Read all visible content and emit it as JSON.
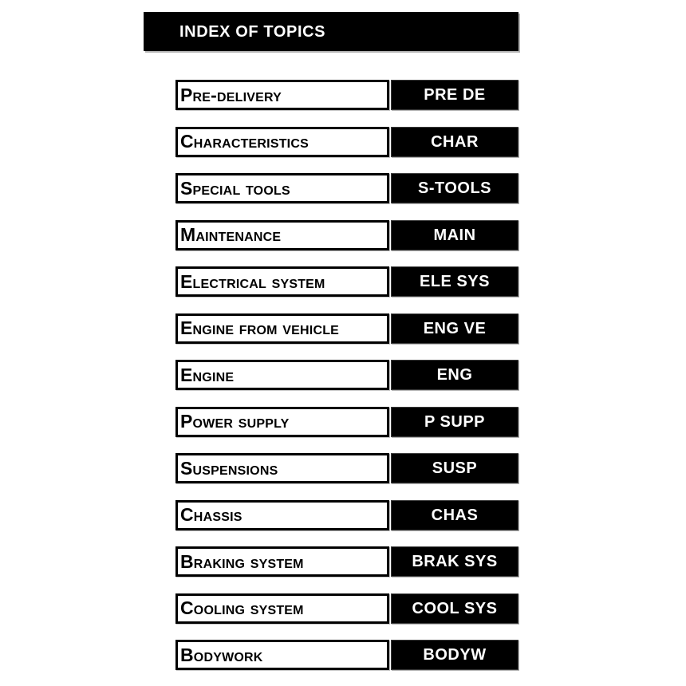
{
  "header": {
    "title": "INDEX OF TOPICS",
    "bg_color": "#000000",
    "text_color": "#ffffff"
  },
  "colors": {
    "page_background": "#ffffff",
    "box_border": "#000000",
    "code_box_bg": "#000000",
    "code_text": "#ffffff",
    "label_text": "#000000"
  },
  "topics": [
    {
      "label": "Pre-delivery",
      "code": "PRE DE"
    },
    {
      "label": "Characteristics",
      "code": "CHAR"
    },
    {
      "label": "Special tools",
      "code": "S-TOOLS"
    },
    {
      "label": "Maintenance",
      "code": "MAIN"
    },
    {
      "label": "Electrical system",
      "code": "ELE SYS"
    },
    {
      "label": "Engine from vehicle",
      "code": "ENG VE"
    },
    {
      "label": "Engine",
      "code": "ENG"
    },
    {
      "label": "Power supply",
      "code": "P SUPP"
    },
    {
      "label": "Suspensions",
      "code": "SUSP"
    },
    {
      "label": "Chassis",
      "code": "CHAS"
    },
    {
      "label": "Braking system",
      "code": "BRAK SYS"
    },
    {
      "label": "Cooling system",
      "code": "COOL SYS"
    },
    {
      "label": "Bodywork",
      "code": "BODYW"
    }
  ]
}
